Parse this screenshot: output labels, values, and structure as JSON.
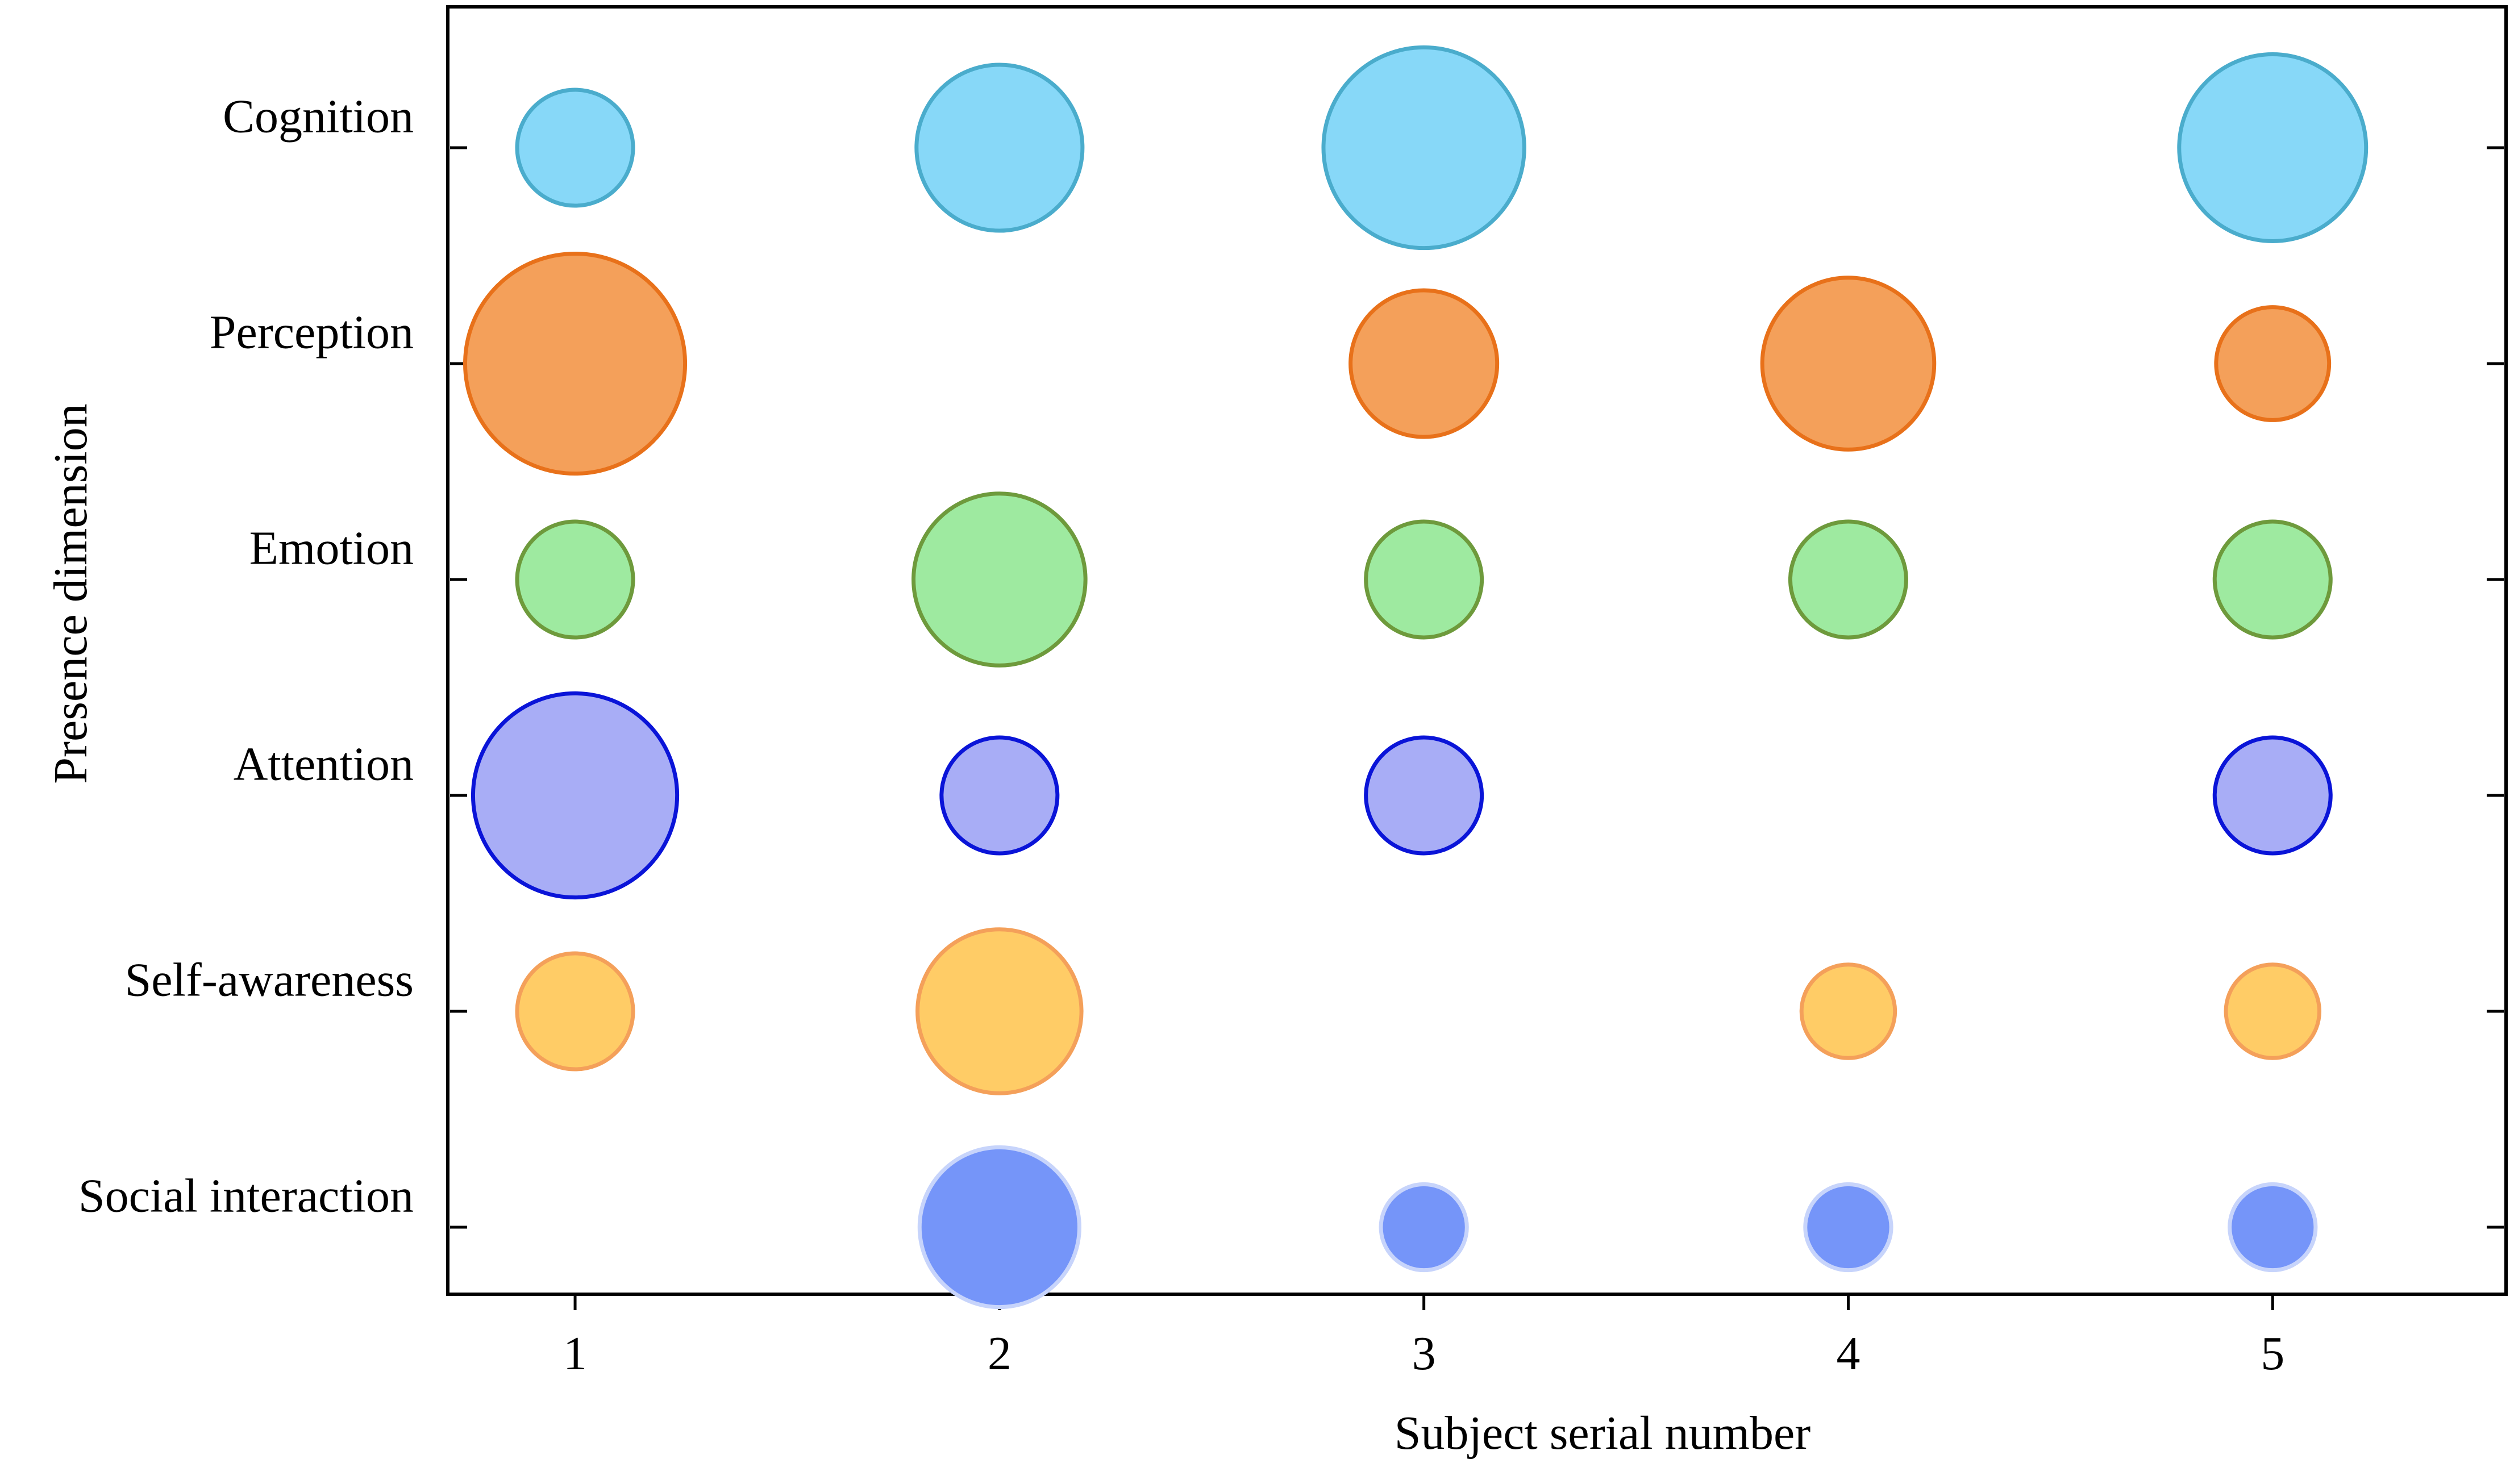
{
  "chart_data": {
    "type": "scatter",
    "subtype": "bubble",
    "title": "",
    "xlabel": "Subject serial number",
    "ylabel": "Presence dimension",
    "xlim": [
      0.7,
      5.55
    ],
    "x_ticks": [
      "1",
      "2",
      "3",
      "4",
      "5"
    ],
    "categories": [
      "Cognition",
      "Perception",
      "Emotion",
      "Attention",
      "Self-awareness",
      "Social interaction"
    ],
    "grid": false,
    "legend": "none",
    "series": [
      {
        "category": "Cognition",
        "fill": "#87d8f8",
        "stroke": "#4aaccc",
        "points": [
          {
            "x": 1,
            "size": 1.0
          },
          {
            "x": 2,
            "size": 2.05
          },
          {
            "x": 3,
            "size": 3.0
          },
          {
            "x": 5,
            "size": 2.6
          }
        ]
      },
      {
        "category": "Perception",
        "fill": "#f4a05a",
        "stroke": "#e8711a",
        "points": [
          {
            "x": 1,
            "size": 3.6
          },
          {
            "x": 3,
            "size": 1.6
          },
          {
            "x": 4,
            "size": 2.2
          },
          {
            "x": 5,
            "size": 0.95
          }
        ]
      },
      {
        "category": "Emotion",
        "fill": "#9eeaa0",
        "stroke": "#6e9a3c",
        "points": [
          {
            "x": 1,
            "size": 1.0
          },
          {
            "x": 2,
            "size": 2.2
          },
          {
            "x": 3,
            "size": 1.0
          },
          {
            "x": 4,
            "size": 1.0
          },
          {
            "x": 5,
            "size": 1.0
          }
        ]
      },
      {
        "category": "Attention",
        "fill": "#a8adf6",
        "stroke": "#0a14d8",
        "points": [
          {
            "x": 1,
            "size": 3.1
          },
          {
            "x": 2,
            "size": 1.0
          },
          {
            "x": 3,
            "size": 1.0
          },
          {
            "x": 5,
            "size": 1.0
          }
        ]
      },
      {
        "category": "Self-awareness",
        "fill": "#ffcc66",
        "stroke": "#f4a05a",
        "points": [
          {
            "x": 1,
            "size": 1.0
          },
          {
            "x": 2,
            "size": 2.0
          },
          {
            "x": 4,
            "size": 0.65
          },
          {
            "x": 5,
            "size": 0.65
          }
        ]
      },
      {
        "category": "Social interaction",
        "fill": "#7595f9",
        "stroke": "#c7d4fb",
        "points": [
          {
            "x": 2,
            "size": 1.9
          },
          {
            "x": 3,
            "size": 0.55
          },
          {
            "x": 4,
            "size": 0.55
          },
          {
            "x": 5,
            "size": 0.55
          }
        ]
      }
    ]
  }
}
